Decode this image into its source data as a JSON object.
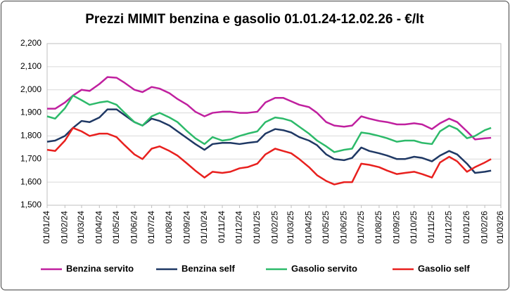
{
  "chart_data": {
    "type": "line",
    "title": "Prezzi MIMIT benzina e gasolio 01.01.24-12.02.26 - €/lt",
    "x": [
      "2024-01-01",
      "2024-01-15",
      "2024-02-01",
      "2024-02-15",
      "2024-03-01",
      "2024-03-15",
      "2024-04-01",
      "2024-04-15",
      "2024-05-01",
      "2024-05-15",
      "2024-06-01",
      "2024-06-15",
      "2024-07-01",
      "2024-07-15",
      "2024-08-01",
      "2024-08-15",
      "2024-09-01",
      "2024-09-15",
      "2024-10-01",
      "2024-10-15",
      "2024-11-01",
      "2024-11-15",
      "2024-12-01",
      "2024-12-15",
      "2025-01-01",
      "2025-01-15",
      "2025-02-01",
      "2025-02-15",
      "2025-03-01",
      "2025-03-15",
      "2025-04-01",
      "2025-04-15",
      "2025-05-01",
      "2025-05-15",
      "2025-06-01",
      "2025-06-15",
      "2025-07-01",
      "2025-07-15",
      "2025-08-01",
      "2025-08-15",
      "2025-09-01",
      "2025-09-15",
      "2025-10-01",
      "2025-10-15",
      "2025-11-01",
      "2025-11-15",
      "2025-12-01",
      "2025-12-15",
      "2026-01-01",
      "2026-01-15",
      "2026-02-01",
      "2026-02-12"
    ],
    "series": [
      {
        "name": "Benzina servito",
        "color": "#c0209f",
        "values": [
          1.918,
          1.918,
          1.945,
          1.975,
          2.0,
          1.995,
          2.025,
          2.055,
          2.052,
          2.03,
          2.0,
          1.99,
          2.012,
          2.005,
          1.985,
          1.96,
          1.935,
          1.905,
          1.885,
          1.9,
          1.905,
          1.905,
          1.9,
          1.9,
          1.905,
          1.945,
          1.965,
          1.965,
          1.95,
          1.935,
          1.925,
          1.9,
          1.86,
          1.845,
          1.84,
          1.845,
          1.885,
          1.875,
          1.865,
          1.86,
          1.85,
          1.85,
          1.855,
          1.85,
          1.83,
          1.855,
          1.875,
          1.86,
          1.82,
          1.785,
          1.79,
          1.792
        ]
      },
      {
        "name": "Benzina self",
        "color": "#1f3864",
        "values": [
          1.775,
          1.78,
          1.8,
          1.835,
          1.865,
          1.86,
          1.88,
          1.915,
          1.915,
          1.89,
          1.86,
          1.845,
          1.875,
          1.865,
          1.845,
          1.82,
          1.79,
          1.765,
          1.74,
          1.765,
          1.77,
          1.77,
          1.765,
          1.77,
          1.775,
          1.81,
          1.83,
          1.825,
          1.815,
          1.795,
          1.78,
          1.76,
          1.72,
          1.7,
          1.695,
          1.705,
          1.75,
          1.735,
          1.725,
          1.715,
          1.7,
          1.7,
          1.71,
          1.705,
          1.69,
          1.715,
          1.735,
          1.72,
          1.68,
          1.64,
          1.645,
          1.65
        ]
      },
      {
        "name": "Gasolio servito",
        "color": "#2dba6a",
        "values": [
          1.885,
          1.875,
          1.92,
          1.975,
          1.955,
          1.935,
          1.945,
          1.95,
          1.935,
          1.9,
          1.86,
          1.845,
          1.885,
          1.9,
          1.88,
          1.86,
          1.82,
          1.79,
          1.765,
          1.795,
          1.78,
          1.785,
          1.8,
          1.81,
          1.82,
          1.86,
          1.88,
          1.875,
          1.865,
          1.84,
          1.81,
          1.78,
          1.755,
          1.73,
          1.74,
          1.745,
          1.815,
          1.81,
          1.8,
          1.79,
          1.775,
          1.78,
          1.78,
          1.77,
          1.765,
          1.82,
          1.845,
          1.83,
          1.79,
          1.8,
          1.825,
          1.835
        ]
      },
      {
        "name": "Gasolio self",
        "color": "#e8201e",
        "values": [
          1.74,
          1.735,
          1.78,
          1.835,
          1.82,
          1.8,
          1.81,
          1.81,
          1.795,
          1.76,
          1.72,
          1.7,
          1.745,
          1.755,
          1.735,
          1.715,
          1.68,
          1.65,
          1.62,
          1.645,
          1.64,
          1.645,
          1.66,
          1.665,
          1.68,
          1.72,
          1.745,
          1.735,
          1.725,
          1.7,
          1.665,
          1.63,
          1.605,
          1.59,
          1.6,
          1.6,
          1.68,
          1.675,
          1.665,
          1.65,
          1.635,
          1.64,
          1.645,
          1.635,
          1.62,
          1.685,
          1.71,
          1.69,
          1.645,
          1.665,
          1.685,
          1.7
        ]
      }
    ],
    "ylim": [
      1.5,
      2.2
    ],
    "yticks": [
      {
        "value": 1.5,
        "label": "1,500"
      },
      {
        "value": 1.6,
        "label": "1,600"
      },
      {
        "value": 1.7,
        "label": "1,700"
      },
      {
        "value": 1.8,
        "label": "1,800"
      },
      {
        "value": 1.9,
        "label": "1,900"
      },
      {
        "value": 2.0,
        "label": "2,000"
      },
      {
        "value": 2.1,
        "label": "2,100"
      },
      {
        "value": 2.2,
        "label": "2,200"
      }
    ],
    "xlim": [
      "2024-01-01",
      "2026-03-01"
    ],
    "xticks": [
      {
        "value": "2024-01-01",
        "label": "01/01/24"
      },
      {
        "value": "2024-02-01",
        "label": "01/02/24"
      },
      {
        "value": "2024-03-01",
        "label": "01/03/24"
      },
      {
        "value": "2024-04-01",
        "label": "01/04/24"
      },
      {
        "value": "2024-05-01",
        "label": "01/05/24"
      },
      {
        "value": "2024-06-01",
        "label": "01/06/24"
      },
      {
        "value": "2024-07-01",
        "label": "01/07/24"
      },
      {
        "value": "2024-08-01",
        "label": "01/08/24"
      },
      {
        "value": "2024-09-01",
        "label": "01/09/24"
      },
      {
        "value": "2024-10-01",
        "label": "01/10/24"
      },
      {
        "value": "2024-11-01",
        "label": "01/11/24"
      },
      {
        "value": "2024-12-01",
        "label": "01/12/24"
      },
      {
        "value": "2025-01-01",
        "label": "01/01/25"
      },
      {
        "value": "2025-02-01",
        "label": "01/02/25"
      },
      {
        "value": "2025-03-01",
        "label": "01/03/25"
      },
      {
        "value": "2025-04-01",
        "label": "01/04/25"
      },
      {
        "value": "2025-05-01",
        "label": "01/05/25"
      },
      {
        "value": "2025-06-01",
        "label": "01/06/25"
      },
      {
        "value": "2025-07-01",
        "label": "01/07/25"
      },
      {
        "value": "2025-08-01",
        "label": "01/08/25"
      },
      {
        "value": "2025-09-01",
        "label": "01/09/25"
      },
      {
        "value": "2025-10-01",
        "label": "01/10/25"
      },
      {
        "value": "2025-11-01",
        "label": "01/11/25"
      },
      {
        "value": "2025-12-01",
        "label": "01/12/25"
      },
      {
        "value": "2026-01-01",
        "label": "01/01/26"
      },
      {
        "value": "2026-02-01",
        "label": "01/02/26"
      },
      {
        "value": "2026-03-01",
        "label": "01/03/26"
      }
    ],
    "grid": true,
    "legend": "bottom"
  }
}
